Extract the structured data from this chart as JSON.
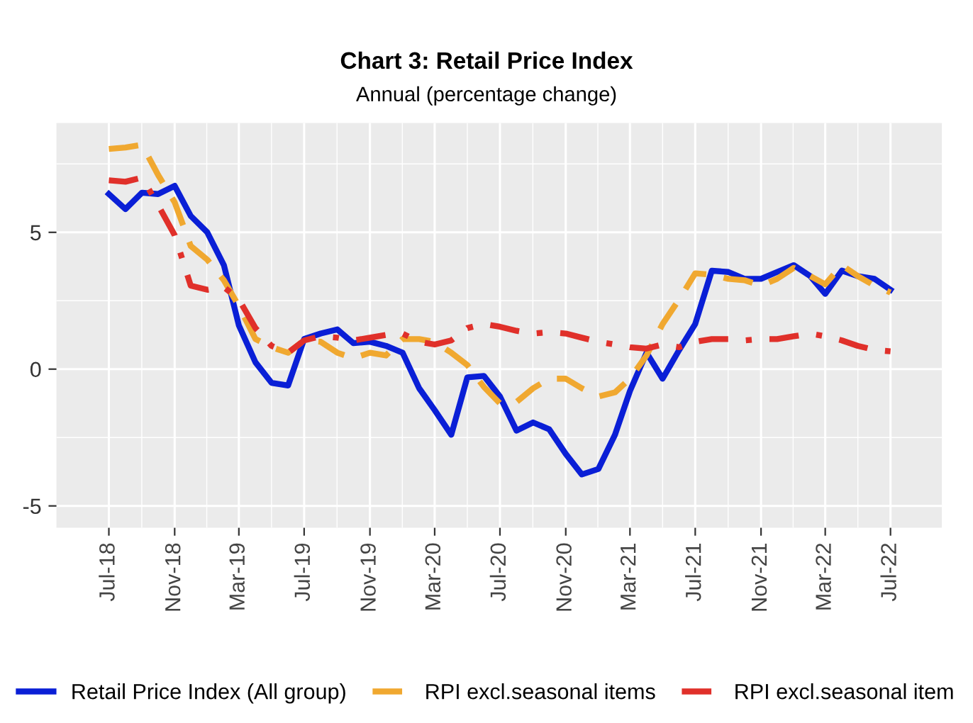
{
  "chart_data": {
    "type": "line",
    "title": "Chart 3: Retail Price Index",
    "subtitle": "Annual (percentage change)",
    "x": [
      "2018-07",
      "2018-08",
      "2018-09",
      "2018-10",
      "2018-11",
      "2018-12",
      "2019-01",
      "2019-02",
      "2019-03",
      "2019-04",
      "2019-05",
      "2019-06",
      "2019-07",
      "2019-08",
      "2019-09",
      "2019-10",
      "2019-11",
      "2019-12",
      "2020-01",
      "2020-02",
      "2020-03",
      "2020-04",
      "2020-05",
      "2020-06",
      "2020-07",
      "2020-08",
      "2020-09",
      "2020-10",
      "2020-11",
      "2020-12",
      "2021-01",
      "2021-02",
      "2021-03",
      "2021-04",
      "2021-05",
      "2021-06",
      "2021-07",
      "2021-08",
      "2021-09",
      "2021-10",
      "2021-11",
      "2021-12",
      "2022-01",
      "2022-02",
      "2022-03",
      "2022-04",
      "2022-05",
      "2022-06",
      "2022-07"
    ],
    "series": [
      {
        "name": "Retail Price Index (All group)",
        "color": "#0a1fd6",
        "line_style": "solid",
        "values": [
          6.4,
          5.85,
          6.45,
          6.4,
          6.7,
          5.6,
          5.0,
          3.8,
          1.6,
          0.25,
          -0.5,
          -0.6,
          1.1,
          1.3,
          1.45,
          0.95,
          1.0,
          0.85,
          0.6,
          -0.7,
          -1.5,
          -2.4,
          -0.3,
          -0.25,
          -1.0,
          -2.25,
          -1.95,
          -2.2,
          -3.1,
          -3.85,
          -3.65,
          -2.4,
          -0.8,
          0.6,
          -0.35,
          0.7,
          1.65,
          3.6,
          3.55,
          3.3,
          3.3,
          3.55,
          3.8,
          3.4,
          2.75,
          3.6,
          3.4,
          3.3,
          2.9
        ]
      },
      {
        "name": "RPI excl.seasonal items",
        "color": "#f0a830",
        "line_style": "dashed",
        "values": [
          8.05,
          8.1,
          8.2,
          7.1,
          6.1,
          4.5,
          4.0,
          3.25,
          2.3,
          1.1,
          0.8,
          0.6,
          1.05,
          1.0,
          0.6,
          0.4,
          0.6,
          0.5,
          1.1,
          1.1,
          1.0,
          0.6,
          0.15,
          -0.65,
          -1.25,
          -1.2,
          -0.7,
          -0.35,
          -0.35,
          -0.7,
          -1.0,
          -0.85,
          -0.35,
          0.5,
          1.65,
          2.55,
          3.5,
          3.45,
          3.3,
          3.25,
          3.05,
          3.3,
          3.7,
          3.4,
          3.1,
          3.8,
          3.4,
          3.05,
          2.8
        ]
      },
      {
        "name": "RPI excl.seasonal item",
        "color": "#e0302a",
        "line_style": "dotted",
        "values": [
          6.9,
          6.85,
          7.0,
          6.0,
          4.9,
          3.05,
          2.9,
          3.0,
          2.55,
          1.5,
          0.85,
          0.6,
          1.05,
          1.2,
          1.15,
          1.05,
          1.15,
          1.25,
          1.3,
          1.0,
          0.9,
          1.05,
          1.5,
          1.65,
          1.55,
          1.4,
          1.3,
          1.35,
          1.3,
          1.15,
          1.0,
          0.9,
          0.8,
          0.75,
          0.9,
          0.8,
          1.0,
          1.1,
          1.1,
          1.05,
          1.1,
          1.1,
          1.2,
          1.3,
          1.2,
          1.05,
          0.85,
          0.7,
          0.65
        ]
      }
    ],
    "xlim": [
      "2018-03-25",
      "2022-10-05"
    ],
    "xticks": [
      {
        "value": "2018-07",
        "label": "Jul-18"
      },
      {
        "value": "2018-11",
        "label": "Nov-18"
      },
      {
        "value": "2019-03",
        "label": "Mar-19"
      },
      {
        "value": "2019-07",
        "label": "Jul-19"
      },
      {
        "value": "2019-11",
        "label": "Nov-19"
      },
      {
        "value": "2020-03",
        "label": "Mar-20"
      },
      {
        "value": "2020-07",
        "label": "Jul-20"
      },
      {
        "value": "2020-11",
        "label": "Nov-20"
      },
      {
        "value": "2021-03",
        "label": "Mar-21"
      },
      {
        "value": "2021-07",
        "label": "Jul-21"
      },
      {
        "value": "2021-11",
        "label": "Nov-21"
      },
      {
        "value": "2022-03",
        "label": "Mar-22"
      },
      {
        "value": "2022-07",
        "label": "Jul-22"
      }
    ],
    "ylim": [
      -5.8,
      9.0
    ],
    "yticks": [
      -5,
      0,
      5
    ],
    "grid": true,
    "legend": "bottom"
  }
}
